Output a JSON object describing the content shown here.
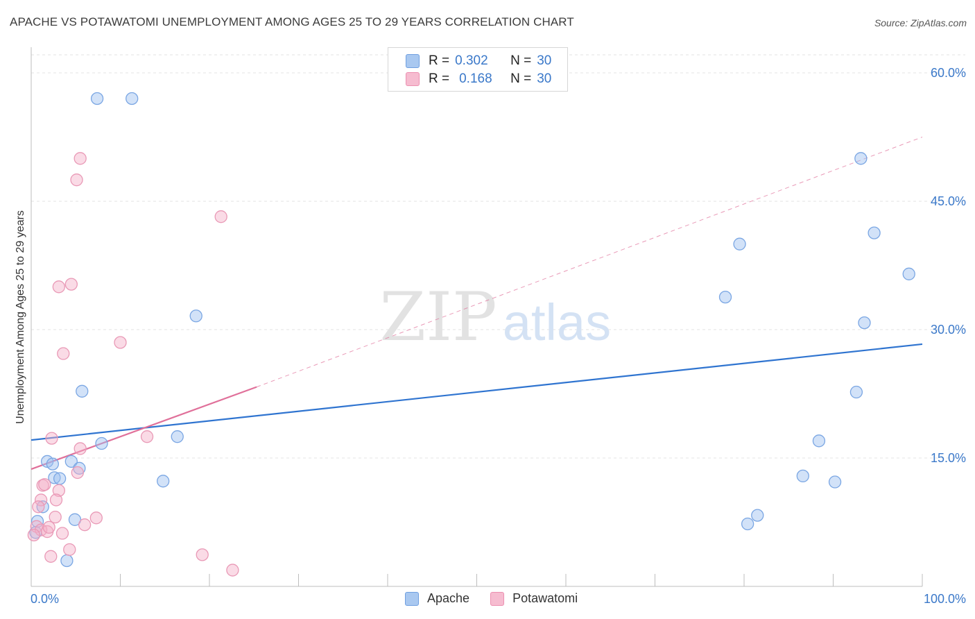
{
  "header": {
    "title": "APACHE VS POTAWATOMI UNEMPLOYMENT AMONG AGES 25 TO 29 YEARS CORRELATION CHART",
    "source": "Source: ZipAtlas.com"
  },
  "legend": {
    "r_label": "R =",
    "n_label": "N =",
    "rows": [
      {
        "r": "0.302",
        "n": "30",
        "color": "#a9c8f0",
        "edge": "#6f9fe0"
      },
      {
        "r": "0.168",
        "n": "30",
        "color": "#f6bcd0",
        "edge": "#ec8fb0"
      }
    ]
  },
  "watermark": {
    "zip": "ZIP",
    "atlas": "atlas"
  },
  "colors": {
    "apache_fill": "rgba(155,190,240,0.45)",
    "apache_edge": "#7aa6e3",
    "apache_line": "#2f74d0",
    "pota_fill": "rgba(245,175,200,0.45)",
    "pota_edge": "#e999b6",
    "pota_line": "#e0709a",
    "grid": "#e3e3e3",
    "tick_label": "#3a78c9"
  },
  "chart_data": {
    "type": "scatter",
    "title": "APACHE VS POTAWATOMI UNEMPLOYMENT AMONG AGES 25 TO 29 YEARS CORRELATION CHART",
    "xlabel": "",
    "ylabel": "Unemployment Among Ages 25 to 29 years",
    "xlim": [
      0,
      100
    ],
    "ylim": [
      0,
      63
    ],
    "x_tick_labels": [
      {
        "value": 0,
        "label": "0.0%"
      },
      {
        "value": 100,
        "label": "100.0%"
      }
    ],
    "y_tick_labels": [
      {
        "value": 15,
        "label": "15.0%"
      },
      {
        "value": 30,
        "label": "30.0%"
      },
      {
        "value": 45,
        "label": "45.0%"
      },
      {
        "value": 60,
        "label": "60.0%"
      }
    ],
    "y_gridlines": [
      15,
      30,
      45,
      60
    ],
    "series": [
      {
        "name": "Apache",
        "R": 0.302,
        "N": 30,
        "trend": {
          "x0": 0,
          "y0": 17.1,
          "x1": 100,
          "y1": 28.3,
          "dashed_to": null
        },
        "points": [
          {
            "x": 7.4,
            "y": 57.0
          },
          {
            "x": 11.3,
            "y": 57.0
          },
          {
            "x": 93.1,
            "y": 50.0
          },
          {
            "x": 79.5,
            "y": 40.0
          },
          {
            "x": 94.6,
            "y": 41.3
          },
          {
            "x": 98.5,
            "y": 36.5
          },
          {
            "x": 77.9,
            "y": 33.8
          },
          {
            "x": 93.5,
            "y": 30.8
          },
          {
            "x": 18.5,
            "y": 31.6
          },
          {
            "x": 5.7,
            "y": 22.8
          },
          {
            "x": 92.6,
            "y": 22.7
          },
          {
            "x": 16.4,
            "y": 17.5
          },
          {
            "x": 7.9,
            "y": 16.7
          },
          {
            "x": 88.4,
            "y": 17.0
          },
          {
            "x": 1.8,
            "y": 14.6
          },
          {
            "x": 2.4,
            "y": 14.3
          },
          {
            "x": 4.5,
            "y": 14.6
          },
          {
            "x": 5.4,
            "y": 13.8
          },
          {
            "x": 2.6,
            "y": 12.7
          },
          {
            "x": 3.2,
            "y": 12.6
          },
          {
            "x": 14.8,
            "y": 12.3
          },
          {
            "x": 86.6,
            "y": 12.9
          },
          {
            "x": 90.2,
            "y": 12.2
          },
          {
            "x": 1.3,
            "y": 9.3
          },
          {
            "x": 0.7,
            "y": 7.6
          },
          {
            "x": 4.9,
            "y": 7.8
          },
          {
            "x": 81.5,
            "y": 8.3
          },
          {
            "x": 80.4,
            "y": 7.3
          },
          {
            "x": 0.5,
            "y": 6.3
          },
          {
            "x": 4.0,
            "y": 3.0
          }
        ]
      },
      {
        "name": "Potawatomi",
        "R": 0.168,
        "N": 30,
        "trend": {
          "x0": 0,
          "y0": 13.7,
          "x1": 25.3,
          "y1": 23.3,
          "dashed_to": {
            "x": 100,
            "y": 52.5
          }
        },
        "points": [
          {
            "x": 5.5,
            "y": 50.0
          },
          {
            "x": 5.1,
            "y": 47.5
          },
          {
            "x": 21.3,
            "y": 43.2
          },
          {
            "x": 4.5,
            "y": 35.3
          },
          {
            "x": 3.1,
            "y": 35.0
          },
          {
            "x": 10.0,
            "y": 28.5
          },
          {
            "x": 3.6,
            "y": 27.2
          },
          {
            "x": 2.3,
            "y": 17.3
          },
          {
            "x": 13.0,
            "y": 17.5
          },
          {
            "x": 5.5,
            "y": 16.1
          },
          {
            "x": 5.2,
            "y": 13.3
          },
          {
            "x": 1.3,
            "y": 11.8
          },
          {
            "x": 1.5,
            "y": 11.9
          },
          {
            "x": 3.1,
            "y": 11.2
          },
          {
            "x": 1.1,
            "y": 10.1
          },
          {
            "x": 2.8,
            "y": 10.1
          },
          {
            "x": 0.8,
            "y": 9.3
          },
          {
            "x": 2.7,
            "y": 8.1
          },
          {
            "x": 7.3,
            "y": 8.0
          },
          {
            "x": 6.0,
            "y": 7.2
          },
          {
            "x": 0.6,
            "y": 7.0
          },
          {
            "x": 1.1,
            "y": 6.6
          },
          {
            "x": 1.8,
            "y": 6.4
          },
          {
            "x": 2.0,
            "y": 6.9
          },
          {
            "x": 3.5,
            "y": 6.2
          },
          {
            "x": 0.3,
            "y": 6.0
          },
          {
            "x": 4.3,
            "y": 4.3
          },
          {
            "x": 2.2,
            "y": 3.5
          },
          {
            "x": 19.2,
            "y": 3.7
          },
          {
            "x": 22.6,
            "y": 1.9
          }
        ]
      }
    ]
  }
}
